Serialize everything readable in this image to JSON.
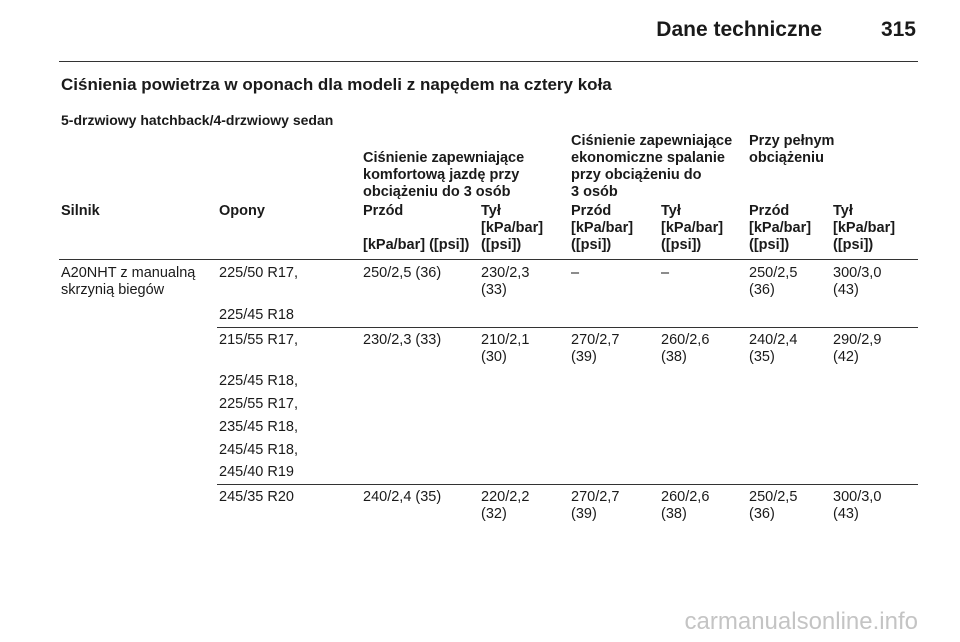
{
  "header": {
    "title": "Dane techniczne",
    "page_number": "315"
  },
  "section_title": "Ciśnienia powietrza w oponach dla modeli z napędem na cztery koła",
  "subtitle": "5-drzwiowy hatchback/4-drzwiowy sedan",
  "table": {
    "groups": [
      [
        "Ciśnienie zapewniające",
        "komfortową jazdę przy",
        "obciążeniu do 3 osób"
      ],
      [
        "Ciśnienie zapewniające",
        "ekonomiczne spalanie",
        "przy obciążeniu do",
        "3 osób"
      ],
      [
        "Przy pełnym",
        "obciążeniu"
      ]
    ],
    "columns": [
      "Silnik",
      "Opony",
      "Przód",
      "Tył",
      "Przód",
      "Tył",
      "Przód",
      "Tył"
    ],
    "units": [
      "[kPa/bar] ([psi])",
      "[kPa/bar]",
      "([psi])",
      "[kPa/bar]",
      "([psi])",
      "[kPa/bar]",
      "([psi])",
      "[kPa/bar]",
      "([psi])",
      "[kPa/bar]",
      "([psi])"
    ],
    "rows": [
      {
        "engine": [
          "A20NHT z manualną",
          "skrzynią biegów"
        ],
        "tyres": [
          "225/50 R17,",
          "225/45 R18"
        ],
        "values": [
          [
            "250/2,5 (36)"
          ],
          [
            "230/2,3",
            "(33)"
          ],
          [
            "–"
          ],
          [
            "–"
          ],
          [
            "250/2,5",
            "(36)"
          ],
          [
            "300/3,0",
            "(43)"
          ]
        ]
      },
      {
        "engine": [],
        "tyres": [
          "215/55 R17,",
          "225/45 R18,",
          "225/55 R17,",
          "235/45 R18,",
          "245/45 R18,",
          "245/40 R19"
        ],
        "values": [
          [
            "230/2,3 (33)"
          ],
          [
            "210/2,1",
            "(30)"
          ],
          [
            "270/2,7",
            "(39)"
          ],
          [
            "260/2,6",
            "(38)"
          ],
          [
            "240/2,4",
            "(35)"
          ],
          [
            "290/2,9",
            "(42)"
          ]
        ]
      },
      {
        "engine": [],
        "tyres": [
          "245/35 R20"
        ],
        "values": [
          [
            "240/2,4 (35)"
          ],
          [
            "220/2,2",
            "(32)"
          ],
          [
            "270/2,7",
            "(39)"
          ],
          [
            "260/2,6",
            "(38)"
          ],
          [
            "250/2,5",
            "(36)"
          ],
          [
            "300/3,0",
            "(43)"
          ]
        ]
      }
    ]
  },
  "watermark": "carmanualsonline.info"
}
